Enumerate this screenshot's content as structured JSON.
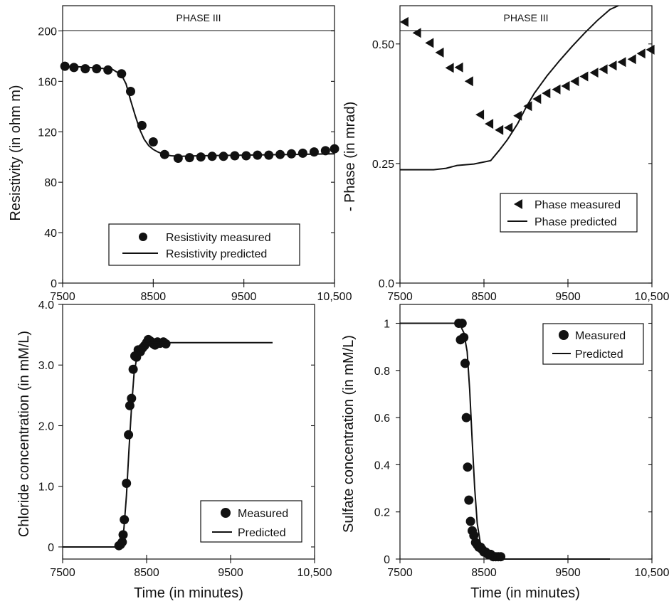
{
  "chart_data": [
    {
      "type": "scatter",
      "banner": "PHASE III",
      "xlabel": "",
      "ylabel": "Resistivity (in ohm m)",
      "xlim": [
        7500,
        10500
      ],
      "ylim": [
        0,
        220
      ],
      "x_ticks": [
        7500,
        8500,
        9500,
        10500
      ],
      "x_tick_labels": [
        "7500",
        "8500",
        "9500",
        "10,500"
      ],
      "y_ticks": [
        0,
        40,
        80,
        120,
        160,
        200
      ],
      "y_tick_labels": [
        "0",
        "40",
        "80",
        "120",
        "160",
        "200"
      ],
      "legend_position": "bottom-right",
      "series": [
        {
          "name": "Resistivity measured",
          "style": "circle",
          "x": [
            7525,
            7625,
            7750,
            7875,
            8000,
            8150,
            8250,
            8375,
            8500,
            8625,
            8775,
            8900,
            9025,
            9150,
            9275,
            9400,
            9525,
            9650,
            9775,
            9900,
            10025,
            10150,
            10275,
            10400,
            10500
          ],
          "y": [
            172,
            171,
            170,
            170,
            169,
            166,
            152,
            125,
            112,
            102,
            99,
            99.5,
            100,
            100.5,
            100.5,
            101,
            101,
            101.5,
            101.5,
            102,
            102.5,
            103,
            104,
            105,
            106.5
          ]
        },
        {
          "name": "Resistivity predicted",
          "style": "line",
          "x": [
            7500,
            7700,
            7900,
            8050,
            8150,
            8200,
            8250,
            8300,
            8350,
            8400,
            8450,
            8500,
            8550,
            8600,
            8650,
            8700,
            8800,
            9000,
            9500,
            10000,
            10500
          ],
          "y": [
            172,
            171.5,
            170.5,
            169.5,
            165,
            158,
            145,
            133,
            122,
            114,
            109,
            106,
            104,
            102.5,
            101.5,
            101,
            100.5,
            101,
            101.5,
            102,
            102.5
          ]
        }
      ]
    },
    {
      "type": "scatter",
      "banner": "PHASE III",
      "xlabel": "",
      "ylabel": "- Phase (in mrad)",
      "xlim": [
        7500,
        10500
      ],
      "ylim": [
        0,
        0.58
      ],
      "x_ticks": [
        7500,
        8500,
        9500,
        10500
      ],
      "x_tick_labels": [
        "7500",
        "8500",
        "9500",
        "10,500"
      ],
      "y_ticks": [
        0,
        0.25,
        0.5
      ],
      "y_tick_labels": [
        "0.0",
        "0.25",
        "0.50"
      ],
      "legend_position": "bottom-right",
      "series": [
        {
          "name": "Phase measured",
          "style": "left-triangle",
          "x": [
            7550,
            7700,
            7850,
            7970,
            8090,
            8200,
            8320,
            8450,
            8560,
            8680,
            8790,
            8900,
            9020,
            9130,
            9240,
            9360,
            9470,
            9580,
            9690,
            9810,
            9920,
            10030,
            10140,
            10260,
            10370,
            10480
          ],
          "y": [
            0.546,
            0.523,
            0.502,
            0.482,
            0.45,
            0.451,
            0.422,
            0.352,
            0.333,
            0.32,
            0.325,
            0.35,
            0.37,
            0.385,
            0.397,
            0.405,
            0.412,
            0.422,
            0.432,
            0.44,
            0.447,
            0.455,
            0.462,
            0.468,
            0.48,
            0.488
          ]
        },
        {
          "name": "Phase predicted",
          "style": "line",
          "x": [
            7500,
            7900,
            8050,
            8180,
            8380,
            8580,
            8680,
            8780,
            8900,
            9000,
            9100,
            9250,
            9400,
            9550,
            9700,
            9850,
            10000,
            10100
          ],
          "y": [
            0.237,
            0.237,
            0.24,
            0.246,
            0.249,
            0.256,
            0.277,
            0.3,
            0.333,
            0.367,
            0.397,
            0.433,
            0.465,
            0.495,
            0.523,
            0.549,
            0.572,
            0.58
          ]
        }
      ]
    },
    {
      "type": "scatter",
      "xlabel": "Time (in minutes)",
      "ylabel": "Chloride  concentration (in mM/L)",
      "xlim": [
        7500,
        10500
      ],
      "ylim": [
        -0.2,
        4.0
      ],
      "x_ticks": [
        7500,
        8500,
        9500,
        10500
      ],
      "x_tick_labels": [
        "7500",
        "8500",
        "9500",
        "10,500"
      ],
      "y_ticks": [
        0,
        1,
        2,
        3,
        4
      ],
      "y_tick_labels": [
        "0",
        "1.0",
        "2.0",
        "3.0",
        "4.0"
      ],
      "legend_position": "bottom-right",
      "series": [
        {
          "name": "Measured",
          "style": "circle",
          "x": [
            8170,
            8190,
            8210,
            8220,
            8235,
            8260,
            8285,
            8300,
            8320,
            8340,
            8360,
            8380,
            8400,
            8425,
            8450,
            8475,
            8500,
            8520,
            8540,
            8560,
            8580,
            8600,
            8630,
            8660,
            8700,
            8730
          ],
          "y": [
            0.02,
            0.04,
            0.08,
            0.2,
            0.45,
            1.05,
            1.85,
            2.33,
            2.45,
            2.93,
            3.15,
            3.13,
            3.25,
            3.22,
            3.28,
            3.32,
            3.37,
            3.42,
            3.4,
            3.38,
            3.35,
            3.33,
            3.38,
            3.36,
            3.38,
            3.35
          ]
        },
        {
          "name": "Predicted",
          "style": "line",
          "x": [
            7500,
            8150,
            8200,
            8230,
            8260,
            8290,
            8320,
            8350,
            8380,
            8410,
            8450,
            8500,
            8550,
            8600,
            10000
          ],
          "y": [
            0,
            0,
            0.08,
            0.3,
            0.85,
            1.6,
            2.3,
            2.85,
            3.1,
            3.25,
            3.32,
            3.36,
            3.37,
            3.37,
            3.37
          ]
        }
      ]
    },
    {
      "type": "scatter",
      "xlabel": "Time (in minutes)",
      "ylabel": "Sulfate   concentration (in mM/L)",
      "xlim": [
        7500,
        10500
      ],
      "ylim": [
        0,
        1.08
      ],
      "x_ticks": [
        7500,
        8500,
        9500,
        10500
      ],
      "x_tick_labels": [
        "7500",
        "8500",
        "9500",
        "10,500"
      ],
      "y_ticks": [
        0,
        0.2,
        0.4,
        0.6,
        0.8,
        1.0
      ],
      "y_tick_labels": [
        "0",
        "0.2",
        "0.4",
        "0.6",
        "0.8",
        "1"
      ],
      "legend_position": "top-right",
      "series": [
        {
          "name": "Measured",
          "style": "circle",
          "x": [
            8200,
            8220,
            8240,
            8260,
            8275,
            8290,
            8305,
            8320,
            8340,
            8360,
            8380,
            8400,
            8420,
            8440,
            8460,
            8480,
            8500,
            8520,
            8550,
            8580,
            8610,
            8640,
            8670,
            8700
          ],
          "y": [
            1.0,
            0.93,
            1.0,
            0.94,
            0.83,
            0.6,
            0.39,
            0.25,
            0.16,
            0.12,
            0.1,
            0.07,
            0.06,
            0.05,
            0.05,
            0.04,
            0.03,
            0.03,
            0.02,
            0.02,
            0.01,
            0.01,
            0.01,
            0.01
          ]
        },
        {
          "name": "Predicted",
          "style": "line",
          "x": [
            7500,
            8180,
            8220,
            8260,
            8300,
            8330,
            8360,
            8390,
            8420,
            8460,
            8500,
            8550,
            8600,
            8700,
            10000
          ],
          "y": [
            1.0,
            1.0,
            0.99,
            0.96,
            0.88,
            0.72,
            0.5,
            0.3,
            0.15,
            0.06,
            0.02,
            0.01,
            0,
            0,
            0
          ]
        }
      ]
    }
  ]
}
